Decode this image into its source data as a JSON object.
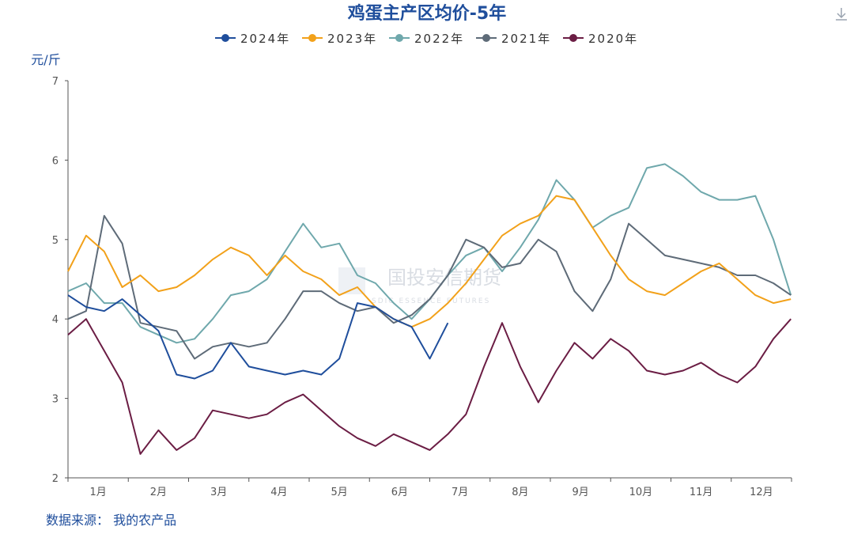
{
  "chart_data": {
    "type": "line",
    "title": "鸡蛋主产区均价-5年",
    "ylabel": "元/斤",
    "xlabel": "",
    "ylim": [
      2,
      7
    ],
    "yticks": [
      "2",
      "3",
      "4",
      "5",
      "6",
      "7"
    ],
    "categories": [
      "1月",
      "2月",
      "3月",
      "4月",
      "5月",
      "6月",
      "7月",
      "8月",
      "9月",
      "10月",
      "11月",
      "12月"
    ],
    "source": "数据来源： 我的农产品",
    "watermark": "国投安信期货",
    "watermark_sub": "SDIC ESSENCE FUTURES",
    "series": [
      {
        "name": "2024年",
        "color": "#1f4e9c",
        "x": [
          0,
          0.3,
          0.6,
          0.9,
          1.2,
          1.5,
          1.8,
          2.1,
          2.4,
          2.7,
          3.0,
          3.3,
          3.6,
          3.9,
          4.2,
          4.5,
          4.8,
          5.1,
          5.4,
          5.7,
          6.0,
          6.3
        ],
        "y": [
          4.3,
          4.15,
          4.1,
          4.25,
          4.05,
          3.85,
          3.3,
          3.25,
          3.35,
          3.7,
          3.4,
          3.35,
          3.3,
          3.35,
          3.3,
          3.5,
          4.2,
          4.15,
          4.0,
          3.9,
          3.5,
          3.95
        ]
      },
      {
        "name": "2023年",
        "color": "#f2a11a",
        "x": [
          0,
          0.3,
          0.6,
          0.9,
          1.2,
          1.5,
          1.8,
          2.1,
          2.4,
          2.7,
          3.0,
          3.3,
          3.6,
          3.9,
          4.2,
          4.5,
          4.8,
          5.1,
          5.4,
          5.7,
          6.0,
          6.3,
          6.6,
          6.9,
          7.2,
          7.5,
          7.8,
          8.1,
          8.4,
          8.7,
          9.0,
          9.3,
          9.6,
          9.9,
          10.2,
          10.5,
          10.8,
          11.1,
          11.4,
          11.7,
          11.99
        ],
        "y": [
          4.6,
          5.05,
          4.85,
          4.4,
          4.55,
          4.35,
          4.4,
          4.55,
          4.75,
          4.9,
          4.8,
          4.55,
          4.8,
          4.6,
          4.5,
          4.3,
          4.4,
          4.15,
          4.0,
          3.9,
          4.0,
          4.2,
          4.45,
          4.75,
          5.05,
          5.2,
          5.3,
          5.55,
          5.5,
          5.15,
          4.8,
          4.5,
          4.35,
          4.3,
          4.45,
          4.6,
          4.7,
          4.5,
          4.3,
          4.2,
          4.25
        ]
      },
      {
        "name": "2022年",
        "color": "#6fa8ac",
        "x": [
          0,
          0.3,
          0.6,
          0.9,
          1.2,
          1.5,
          1.8,
          2.1,
          2.4,
          2.7,
          3.0,
          3.3,
          3.6,
          3.9,
          4.2,
          4.5,
          4.8,
          5.1,
          5.4,
          5.7,
          6.0,
          6.3,
          6.6,
          6.9,
          7.2,
          7.5,
          7.8,
          8.1,
          8.4,
          8.7,
          9.0,
          9.3,
          9.6,
          9.9,
          10.2,
          10.5,
          10.8,
          11.1,
          11.4,
          11.7,
          11.99
        ],
        "y": [
          4.35,
          4.45,
          4.2,
          4.2,
          3.9,
          3.8,
          3.7,
          3.75,
          4.0,
          4.3,
          4.35,
          4.5,
          4.85,
          5.2,
          4.9,
          4.95,
          4.55,
          4.45,
          4.2,
          4.0,
          4.25,
          4.55,
          4.8,
          4.9,
          4.6,
          4.9,
          5.25,
          5.75,
          5.5,
          5.15,
          5.3,
          5.4,
          5.9,
          5.95,
          5.8,
          5.6,
          5.5,
          5.5,
          5.55,
          5.0,
          4.3
        ]
      },
      {
        "name": "2021年",
        "color": "#5e6b78",
        "x": [
          0,
          0.3,
          0.6,
          0.9,
          1.2,
          1.5,
          1.8,
          2.1,
          2.4,
          2.7,
          3.0,
          3.3,
          3.6,
          3.9,
          4.2,
          4.5,
          4.8,
          5.1,
          5.4,
          5.7,
          6.0,
          6.3,
          6.6,
          6.9,
          7.2,
          7.5,
          7.8,
          8.1,
          8.4,
          8.7,
          9.0,
          9.3,
          9.6,
          9.9,
          10.2,
          10.5,
          10.8,
          11.1,
          11.4,
          11.7,
          11.99
        ],
        "y": [
          4.0,
          4.1,
          5.3,
          4.95,
          3.95,
          3.9,
          3.85,
          3.5,
          3.65,
          3.7,
          3.65,
          3.7,
          4.0,
          4.35,
          4.35,
          4.2,
          4.1,
          4.15,
          3.95,
          4.05,
          4.25,
          4.55,
          5.0,
          4.9,
          4.65,
          4.7,
          5.0,
          4.85,
          4.35,
          4.1,
          4.5,
          5.2,
          5.0,
          4.8,
          4.75,
          4.7,
          4.65,
          4.55,
          4.55,
          4.45,
          4.3
        ]
      },
      {
        "name": "2020年",
        "color": "#6b1d44",
        "x": [
          0,
          0.3,
          0.6,
          0.9,
          1.2,
          1.5,
          1.8,
          2.1,
          2.4,
          2.7,
          3.0,
          3.3,
          3.6,
          3.9,
          4.2,
          4.5,
          4.8,
          5.1,
          5.4,
          5.7,
          6.0,
          6.3,
          6.6,
          6.9,
          7.2,
          7.5,
          7.8,
          8.1,
          8.4,
          8.7,
          9.0,
          9.3,
          9.6,
          9.9,
          10.2,
          10.5,
          10.8,
          11.1,
          11.4,
          11.7,
          11.99
        ],
        "y": [
          3.8,
          4.0,
          3.6,
          3.2,
          2.3,
          2.6,
          2.35,
          2.5,
          2.85,
          2.8,
          2.75,
          2.8,
          2.95,
          3.05,
          2.85,
          2.65,
          2.5,
          2.4,
          2.55,
          2.45,
          2.35,
          2.55,
          2.8,
          3.4,
          3.95,
          3.4,
          2.95,
          3.35,
          3.7,
          3.5,
          3.75,
          3.6,
          3.35,
          3.3,
          3.35,
          3.45,
          3.3,
          3.2,
          3.4,
          3.75,
          4.0
        ]
      }
    ]
  }
}
